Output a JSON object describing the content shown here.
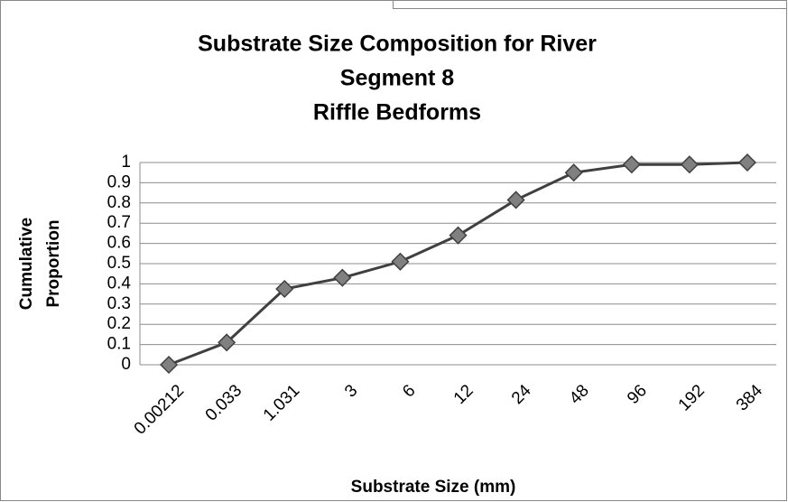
{
  "chart_data": {
    "type": "line",
    "title": [
      "Substrate Size Composition for River",
      "Segment 8",
      "Riffle Bedforms"
    ],
    "x_label": "Substrate Size (mm)",
    "y_label": [
      "Cumulative",
      "Proportion"
    ],
    "categories": [
      "0.00212",
      "0.033",
      "1.031",
      "3",
      "6",
      "12",
      "24",
      "48",
      "96",
      "192",
      "384"
    ],
    "series": [
      {
        "name": "Cumulative Proportion",
        "color": "#404040",
        "marker_color": "#808080",
        "values": [
          0,
          0.11,
          0.375,
          0.43,
          0.51,
          0.64,
          0.815,
          0.95,
          0.99,
          0.99,
          1.0
        ]
      }
    ],
    "ylim": [
      0,
      1
    ],
    "yticks": [
      0,
      0.1,
      0.2,
      0.3,
      0.4,
      0.5,
      0.6,
      0.7,
      0.8,
      0.9,
      1
    ],
    "grid": true
  }
}
